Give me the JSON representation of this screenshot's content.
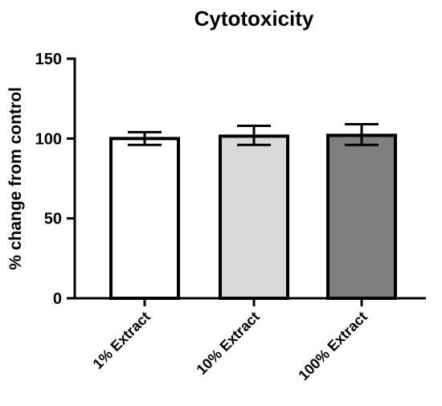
{
  "chart_data": {
    "type": "bar",
    "title": "Cytotoxicity",
    "xlabel": "",
    "ylabel": "% change from control",
    "ylim": [
      0,
      150
    ],
    "yticks": [
      0,
      50,
      100,
      150
    ],
    "categories": [
      "1% Extract",
      "10% Extract",
      "100% Extract"
    ],
    "values": [
      100,
      101.5,
      102
    ],
    "error_upper": [
      104,
      108,
      109
    ],
    "error_lower": [
      96,
      96,
      96
    ],
    "bar_colors": [
      "#ffffff",
      "#d9d9d9",
      "#7f7f7f"
    ],
    "grid": false
  }
}
